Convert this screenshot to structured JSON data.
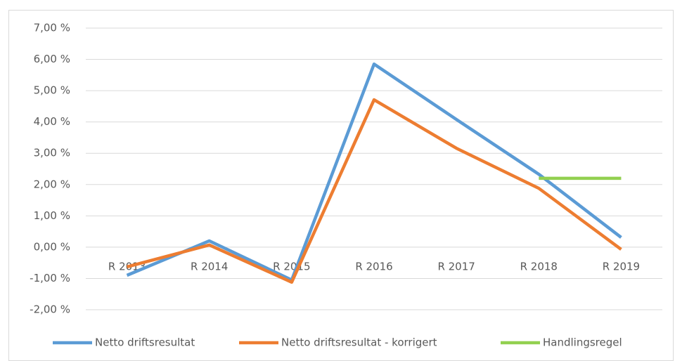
{
  "chart_data": {
    "type": "line",
    "categories": [
      "R 2013",
      "R 2014",
      "R 2015",
      "R 2016",
      "R 2017",
      "R 2018",
      "R 2019"
    ],
    "series": [
      {
        "name": "Netto driftsresultat",
        "color": "#5b9bd5",
        "values": [
          -0.9,
          0.2,
          -1.05,
          5.85,
          4.08,
          2.33,
          0.31
        ]
      },
      {
        "name": "Netto driftsresultat - korrigert",
        "color": "#ed7d31",
        "values": [
          -0.63,
          0.07,
          -1.12,
          4.71,
          3.16,
          1.88,
          -0.07
        ]
      },
      {
        "name": "Handlingsregel",
        "color": "#92d050",
        "values": [
          null,
          null,
          null,
          null,
          null,
          2.2,
          2.2
        ]
      }
    ],
    "ylim": [
      -2,
      7
    ],
    "yticks": [
      {
        "value": -2,
        "label": "-2,00 %"
      },
      {
        "value": -1,
        "label": "-1,00 %"
      },
      {
        "value": 0,
        "label": "0,00 %"
      },
      {
        "value": 1,
        "label": "1,00 %"
      },
      {
        "value": 2,
        "label": "2,00 %"
      },
      {
        "value": 3,
        "label": "3,00 %"
      },
      {
        "value": 4,
        "label": "4,00 %"
      },
      {
        "value": 5,
        "label": "5,00 %"
      },
      {
        "value": 6,
        "label": "6,00 %"
      },
      {
        "value": 7,
        "label": "7,00 %"
      }
    ],
    "grid": true,
    "legend": "bottom"
  }
}
